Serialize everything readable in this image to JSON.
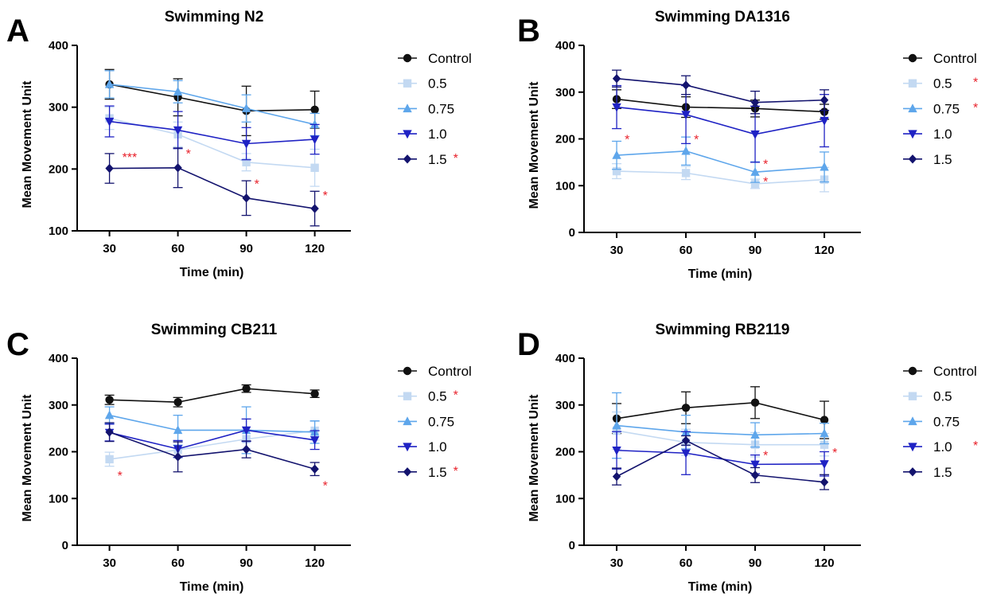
{
  "colors": {
    "Control": "#111111",
    "0.5": "#c3d9f2",
    "0.75": "#5ea6eb",
    "1.0": "#1f22c4",
    "1.5": "#13136e",
    "significance": "#e8202a",
    "axis": "#000000"
  },
  "chart_data": [
    {
      "type": "line",
      "panel": "A",
      "title": "Swimming N2",
      "xlabel": "Time (min)",
      "ylabel": "Mean Movement Unit",
      "x": [
        30,
        60,
        90,
        120
      ],
      "xticks": [
        "30",
        "60",
        "90",
        "120"
      ],
      "ylim": [
        100,
        400
      ],
      "yticks": [
        "100",
        "200",
        "300",
        "400"
      ],
      "legend_position": "right",
      "series": [
        {
          "name": "Control",
          "marker": "circle",
          "values": [
            337,
            316,
            294,
            296
          ],
          "errors": [
            24,
            30,
            40,
            30
          ],
          "sig": ""
        },
        {
          "name": "0.5",
          "marker": "square",
          "values": [
            282,
            256,
            211,
            202
          ],
          "errors": [
            18,
            20,
            14,
            30
          ],
          "sig": ""
        },
        {
          "name": "0.75",
          "marker": "triangle-up",
          "values": [
            337,
            325,
            298,
            272
          ],
          "errors": [
            22,
            18,
            22,
            18
          ],
          "sig": ""
        },
        {
          "name": "1.0",
          "marker": "triangle-down",
          "values": [
            277,
            263,
            241,
            248
          ],
          "errors": [
            25,
            30,
            26,
            24
          ],
          "sig": ""
        },
        {
          "name": "1.5",
          "marker": "diamond",
          "values": [
            201,
            202,
            153,
            136
          ],
          "errors": [
            24,
            32,
            28,
            28
          ],
          "sig": "*"
        }
      ],
      "annotations": [
        {
          "text": "***",
          "x": 30,
          "y": 212
        },
        {
          "text": "*",
          "x": 60,
          "y": 218
        },
        {
          "text": "*",
          "x": 90,
          "y": 169
        },
        {
          "text": "*",
          "x": 120,
          "y": 150
        }
      ]
    },
    {
      "type": "line",
      "panel": "B",
      "title": "Swimming DA1316",
      "xlabel": "Time (min)",
      "ylabel": "Mean Movement Unit",
      "x": [
        30,
        60,
        90,
        120
      ],
      "xticks": [
        "30",
        "60",
        "90",
        "120"
      ],
      "ylim": [
        0,
        400
      ],
      "yticks": [
        "0",
        "100",
        "200",
        "300",
        "400"
      ],
      "legend_position": "right",
      "series": [
        {
          "name": "Control",
          "marker": "circle",
          "values": [
            285,
            268,
            265,
            258
          ],
          "errors": [
            20,
            22,
            18,
            16
          ],
          "sig": ""
        },
        {
          "name": "0.5",
          "marker": "square",
          "values": [
            131,
            127,
            104,
            113
          ],
          "errors": [
            16,
            14,
            10,
            26
          ],
          "sig": "*"
        },
        {
          "name": "0.75",
          "marker": "triangle-up",
          "values": [
            165,
            174,
            129,
            140
          ],
          "errors": [
            30,
            30,
            22,
            32
          ],
          "sig": "*"
        },
        {
          "name": "1.0",
          "marker": "triangle-down",
          "values": [
            268,
            252,
            210,
            239
          ],
          "errors": [
            46,
            62,
            60,
            56
          ],
          "sig": ""
        },
        {
          "name": "1.5",
          "marker": "diamond",
          "values": [
            329,
            315,
            278,
            283
          ],
          "errors": [
            18,
            20,
            24,
            22
          ],
          "sig": ""
        }
      ],
      "annotations": [
        {
          "text": "*",
          "x": 30,
          "y": 190
        },
        {
          "text": "*",
          "x": 60,
          "y": 190
        },
        {
          "text": "*",
          "x": 90,
          "y": 137
        },
        {
          "text": "*",
          "x": 90,
          "y": 100
        }
      ]
    },
    {
      "type": "line",
      "panel": "C",
      "title": "Swimming CB211",
      "xlabel": "Time (min)",
      "ylabel": "Mean Movement Unit",
      "x": [
        30,
        60,
        90,
        120
      ],
      "xticks": [
        "30",
        "60",
        "90",
        "120"
      ],
      "ylim": [
        0,
        400
      ],
      "yticks": [
        "0",
        "100",
        "200",
        "300",
        "400"
      ],
      "legend_position": "right",
      "series": [
        {
          "name": "Control",
          "marker": "circle",
          "values": [
            311,
            306,
            335,
            324
          ],
          "errors": [
            10,
            10,
            8,
            8
          ],
          "sig": ""
        },
        {
          "name": "0.5",
          "marker": "square",
          "values": [
            184,
            204,
            227,
            245
          ],
          "errors": [
            15,
            18,
            20,
            20
          ],
          "sig": "*"
        },
        {
          "name": "0.75",
          "marker": "triangle-up",
          "values": [
            278,
            246,
            246,
            242
          ],
          "errors": [
            18,
            32,
            50,
            24
          ],
          "sig": ""
        },
        {
          "name": "1.0",
          "marker": "triangle-down",
          "values": [
            241,
            206,
            246,
            225
          ],
          "errors": [
            18,
            18,
            24,
            20
          ],
          "sig": ""
        },
        {
          "name": "1.5",
          "marker": "diamond",
          "values": [
            242,
            189,
            205,
            163
          ],
          "errors": [
            20,
            32,
            18,
            14
          ],
          "sig": "*"
        }
      ],
      "annotations": [
        {
          "text": "*",
          "x": 30,
          "y": 140
        },
        {
          "text": "*",
          "x": 120,
          "y": 118
        }
      ]
    },
    {
      "type": "line",
      "panel": "D",
      "title": "Swimming RB2119",
      "xlabel": "Time (min)",
      "ylabel": "Mean Movement Unit",
      "x": [
        30,
        60,
        90,
        120
      ],
      "xticks": [
        "30",
        "60",
        "90",
        "120"
      ],
      "ylim": [
        0,
        400
      ],
      "yticks": [
        "0",
        "100",
        "200",
        "300",
        "400"
      ],
      "legend_position": "right",
      "series": [
        {
          "name": "Control",
          "marker": "circle",
          "values": [
            271,
            294,
            305,
            268
          ],
          "errors": [
            32,
            34,
            34,
            40
          ],
          "sig": ""
        },
        {
          "name": "0.5",
          "marker": "square",
          "values": [
            245,
            220,
            215,
            215
          ],
          "errors": [
            40,
            28,
            26,
            24
          ],
          "sig": ""
        },
        {
          "name": "0.75",
          "marker": "triangle-up",
          "values": [
            256,
            242,
            236,
            239
          ],
          "errors": [
            70,
            36,
            26,
            22
          ],
          "sig": ""
        },
        {
          "name": "1.0",
          "marker": "triangle-down",
          "values": [
            203,
            197,
            173,
            174
          ],
          "errors": [
            40,
            46,
            20,
            26
          ],
          "sig": "*"
        },
        {
          "name": "1.5",
          "marker": "diamond",
          "values": [
            147,
            224,
            150,
            135
          ],
          "errors": [
            18,
            10,
            16,
            16
          ],
          "sig": ""
        }
      ],
      "annotations": [
        {
          "text": "*",
          "x": 90,
          "y": 183
        },
        {
          "text": "*",
          "x": 120,
          "y": 189
        }
      ]
    }
  ]
}
